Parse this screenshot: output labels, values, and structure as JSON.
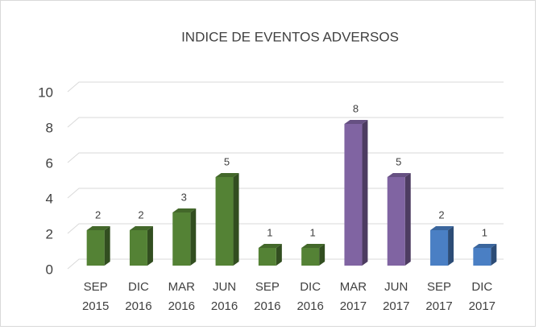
{
  "chart_data": {
    "type": "bar3d",
    "title": "INDICE DE EVENTOS ADVERSOS",
    "categories": [
      "SEP 2015",
      "DIC 2016",
      "MAR 2016",
      "JUN 2016",
      "SEP 2016",
      "DIC 2016",
      "MAR 2017",
      "JUN 2017",
      "SEP 2017",
      "DIC 2017"
    ],
    "values": [
      2,
      2,
      3,
      5,
      1,
      1,
      8,
      5,
      2,
      1
    ],
    "colors": [
      "#548235",
      "#548235",
      "#548235",
      "#548235",
      "#548235",
      "#548235",
      "#8064a2",
      "#8064a2",
      "#4a7fc4",
      "#4a7fc4"
    ],
    "ylim": [
      0,
      10
    ],
    "yticks": [
      0,
      2,
      4,
      6,
      8,
      10
    ],
    "grid": true
  }
}
